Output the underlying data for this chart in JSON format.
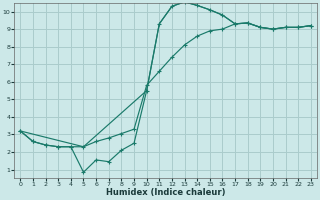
{
  "background_color": "#cce8e8",
  "grid_color": "#aacccc",
  "line_color": "#1a7a6a",
  "xlabel": "Humidex (Indice chaleur)",
  "xlim": [
    -0.5,
    23.5
  ],
  "ylim": [
    0.5,
    10.5
  ],
  "xticks": [
    0,
    1,
    2,
    3,
    4,
    5,
    6,
    7,
    8,
    9,
    10,
    11,
    12,
    13,
    14,
    15,
    16,
    17,
    18,
    19,
    20,
    21,
    22,
    23
  ],
  "yticks": [
    1,
    2,
    3,
    4,
    5,
    6,
    7,
    8,
    9,
    10
  ],
  "series1_x": [
    0,
    1,
    2,
    3,
    4,
    5,
    6,
    7,
    8,
    9,
    10,
    11,
    12,
    13,
    14,
    15,
    16,
    17,
    18,
    19,
    20,
    21,
    22,
    23
  ],
  "series1_y": [
    3.2,
    2.6,
    2.4,
    2.3,
    2.3,
    0.85,
    1.55,
    1.45,
    2.1,
    2.5,
    5.5,
    9.3,
    10.3,
    10.55,
    10.35,
    10.1,
    9.8,
    9.3,
    9.35,
    9.1,
    9.0,
    9.1,
    9.1,
    9.2
  ],
  "series2_x": [
    0,
    1,
    2,
    3,
    4,
    5,
    6,
    7,
    8,
    9,
    10,
    11,
    12,
    13,
    14,
    15,
    16,
    17,
    18,
    19,
    20,
    21,
    22,
    23
  ],
  "series2_y": [
    3.2,
    2.6,
    2.4,
    2.3,
    2.3,
    2.3,
    2.6,
    2.8,
    3.05,
    3.3,
    5.8,
    6.6,
    7.4,
    8.1,
    8.6,
    8.9,
    9.0,
    9.3,
    9.35,
    9.1,
    9.0,
    9.1,
    9.1,
    9.2
  ],
  "series3_x": [
    0,
    5,
    10,
    11,
    12,
    13,
    14,
    15,
    16,
    17,
    18,
    19,
    20,
    21,
    22,
    23
  ],
  "series3_y": [
    3.2,
    2.3,
    5.5,
    9.3,
    10.3,
    10.55,
    10.35,
    10.1,
    9.8,
    9.3,
    9.35,
    9.1,
    9.0,
    9.1,
    9.1,
    9.2
  ]
}
